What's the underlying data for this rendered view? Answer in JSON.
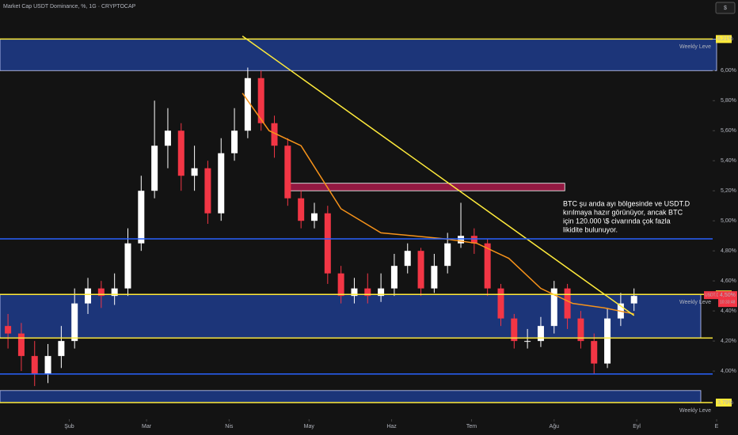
{
  "chart_data": {
    "type": "candlestick",
    "title": "Market Cap USDT Dominance, %, 1G · CRYPTOCAP",
    "currency": "$",
    "x": [
      8,
      13,
      18,
      23,
      28,
      33,
      38,
      43,
      48,
      53,
      58,
      63,
      68,
      73,
      78,
      83,
      88,
      93,
      98,
      103,
      108,
      113,
      118,
      123,
      128,
      133,
      138,
      143,
      148,
      153,
      158,
      163,
      168,
      173,
      178,
      183,
      188,
      193,
      198,
      203,
      208,
      213,
      218,
      223,
      228,
      233,
      238,
      243
    ],
    "open": [
      4.3,
      4.25,
      4.1,
      3.98,
      4.1,
      4.2,
      4.45,
      4.55,
      4.5,
      4.55,
      4.85,
      5.2,
      5.5,
      5.6,
      5.3,
      5.35,
      5.05,
      5.45,
      5.6,
      5.95,
      5.65,
      5.5,
      5.15,
      5.0,
      5.05,
      4.65,
      4.5,
      4.55,
      4.5,
      4.55,
      4.7,
      4.8,
      4.55,
      4.7,
      4.85,
      4.9,
      4.85,
      4.55,
      4.35,
      4.2,
      4.2,
      4.3,
      4.55,
      4.35,
      4.2,
      4.05,
      4.35,
      4.45
    ],
    "high": [
      4.38,
      4.32,
      4.2,
      4.18,
      4.3,
      4.55,
      4.62,
      4.6,
      4.65,
      4.95,
      5.3,
      5.8,
      5.75,
      5.65,
      5.5,
      5.4,
      5.55,
      5.75,
      6.02,
      6.0,
      5.7,
      5.55,
      5.2,
      5.12,
      5.1,
      4.7,
      4.62,
      4.65,
      4.65,
      4.78,
      4.85,
      4.82,
      4.78,
      4.92,
      5.12,
      4.95,
      4.88,
      4.58,
      4.38,
      4.28,
      4.36,
      4.6,
      4.58,
      4.4,
      4.25,
      4.42,
      4.52,
      4.55
    ],
    "low": [
      4.15,
      4.0,
      3.9,
      3.92,
      4.02,
      4.15,
      4.38,
      4.42,
      4.44,
      4.5,
      4.8,
      5.15,
      5.35,
      5.2,
      5.2,
      4.98,
      5.0,
      5.4,
      5.55,
      5.6,
      5.42,
      5.1,
      4.95,
      4.95,
      4.58,
      4.45,
      4.45,
      4.45,
      4.46,
      4.5,
      4.65,
      4.5,
      4.52,
      4.65,
      4.82,
      4.78,
      4.5,
      4.3,
      4.15,
      4.15,
      4.16,
      4.25,
      4.28,
      4.15,
      3.98,
      4.02,
      4.3,
      4.4
    ],
    "close": [
      4.25,
      4.1,
      3.98,
      4.1,
      4.2,
      4.45,
      4.55,
      4.5,
      4.55,
      4.85,
      5.2,
      5.5,
      5.6,
      5.3,
      5.35,
      5.05,
      5.45,
      5.6,
      5.95,
      5.65,
      5.5,
      5.15,
      5.0,
      5.05,
      4.65,
      4.5,
      4.55,
      4.5,
      4.55,
      4.7,
      4.8,
      4.55,
      4.7,
      4.85,
      4.9,
      4.85,
      4.55,
      4.35,
      4.2,
      4.2,
      4.3,
      4.55,
      4.35,
      4.2,
      4.05,
      4.35,
      4.45,
      4.5
    ],
    "up_color": "#ffffff",
    "down_color": "#f23645",
    "ma": {
      "color": "#f7931a",
      "x": [
        96,
        106,
        118,
        133,
        148,
        172,
        184,
        196,
        208,
        220,
        232,
        243
      ],
      "values": [
        5.85,
        5.6,
        5.5,
        5.08,
        4.92,
        4.88,
        4.85,
        4.75,
        4.55,
        4.45,
        4.42,
        4.38
      ]
    },
    "trendline": {
      "color": "#ffeb3b",
      "x": [
        96,
        243
      ],
      "values": [
        6.23,
        4.37
      ]
    },
    "box": {
      "color": "#e91e63",
      "x": [
        113,
        217
      ],
      "values": [
        5.2,
        5.25
      ]
    },
    "zones": [
      {
        "color": "#1e3c8c",
        "from": 6.0,
        "to": 6.21
      },
      {
        "color": "#1e3c8c",
        "from": 4.22,
        "to": 4.51
      },
      {
        "color": "#1e3c8c",
        "from": 3.79,
        "to": 3.87
      }
    ],
    "levels": [
      {
        "value": 6.21,
        "label": "6,21%",
        "note": "Weekly Leve",
        "color": "#ffeb3b"
      },
      {
        "value": 4.51,
        "label": "4,51%",
        "note": "Weekly Leve",
        "color": "#ffeb3b"
      },
      {
        "value": 3.79,
        "label": "3,79%",
        "note": "Weekly Leve",
        "color": "#ffeb3b"
      },
      {
        "value": 4.22,
        "color": "#ffeb3b"
      },
      {
        "value": 4.88,
        "color": "#2962ff"
      },
      {
        "value": 3.98,
        "color": "#2962ff"
      }
    ],
    "annotation": [
      "BTC şu anda ayı bölgesinde ve USDT.D",
      "kırılmaya hazır görünüyor, ancak BTC",
      "için 120.000 \\$ civarında çok fazla",
      "likidite bulunuyor."
    ],
    "price_tag": {
      "value": 4.5,
      "symbol": "USDT.D",
      "label": "4,50%",
      "countdown": "10:33:48"
    },
    "xlim": [
      5,
      274
    ],
    "ylim": [
      3.69,
      6.47
    ],
    "xticks": [
      {
        "value": 31,
        "label": "Şub"
      },
      {
        "value": 60,
        "label": "Mar"
      },
      {
        "value": 91,
        "label": "Nis"
      },
      {
        "value": 121,
        "label": "May"
      },
      {
        "value": 152,
        "label": "Haz"
      },
      {
        "value": 182,
        "label": "Tem"
      },
      {
        "value": 213,
        "label": "Ağu"
      },
      {
        "value": 244,
        "label": "Eyl"
      },
      {
        "value": 274,
        "label": "E"
      }
    ],
    "yticks": [
      {
        "value": 4.0,
        "label": "4,00%"
      },
      {
        "value": 4.2,
        "label": "4,20%"
      },
      {
        "value": 4.4,
        "label": "4,40%"
      },
      {
        "value": 4.6,
        "label": "4,60%"
      },
      {
        "value": 4.8,
        "label": "4,80%"
      },
      {
        "value": 5.0,
        "label": "5,00%"
      },
      {
        "value": 5.2,
        "label": "5,20%"
      },
      {
        "value": 5.4,
        "label": "5,40%"
      },
      {
        "value": 5.6,
        "label": "5,60%"
      },
      {
        "value": 5.8,
        "label": "5,80%"
      },
      {
        "value": 6.0,
        "label": "6,00%"
      }
    ]
  }
}
